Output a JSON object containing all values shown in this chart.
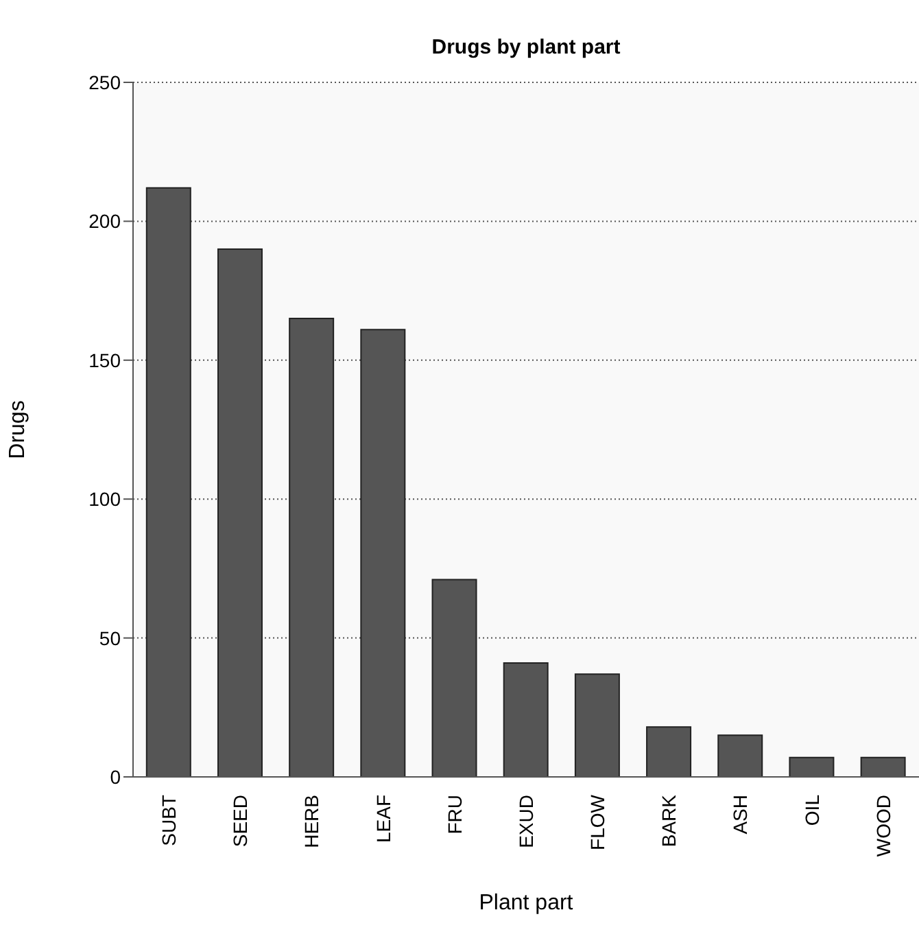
{
  "chart_data": {
    "type": "bar",
    "title": "Drugs by plant part",
    "xlabel": "Plant part",
    "ylabel": "Drugs",
    "categories": [
      "SUBT",
      "SEED",
      "HERB",
      "LEAF",
      "FRU",
      "EXUD",
      "FLOW",
      "BARK",
      "ASH",
      "OIL",
      "WOOD"
    ],
    "values": [
      212,
      190,
      165,
      161,
      71,
      41,
      37,
      18,
      15,
      7,
      7
    ],
    "color": "#555555",
    "ylim": [
      0,
      250
    ],
    "yticks": [
      0,
      50,
      100,
      150,
      200,
      250
    ],
    "grid": "y"
  }
}
